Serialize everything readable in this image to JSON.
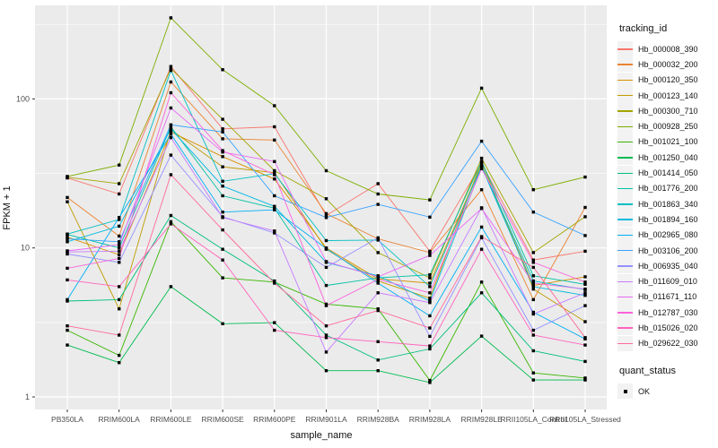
{
  "panel": {
    "background": "#EBEBEB",
    "grid_color": "#FFFFFF",
    "tick_color": "#333333",
    "tick_label_color": "#4D4D4D",
    "marker_color": "#000000"
  },
  "legend": {
    "tracking_title": "tracking_id",
    "quant_title": "quant_status",
    "quant_items": [
      {
        "label": "OK"
      }
    ]
  },
  "chart_data": {
    "type": "line",
    "title": "",
    "xlabel": "sample_name",
    "ylabel": "FPKM + 1",
    "y_scale": "log10",
    "y_ticks": [
      1,
      10,
      100
    ],
    "ylim": [
      1,
      400
    ],
    "grid": "on",
    "legend_position": "right",
    "marker": "black-square",
    "categories": [
      "PB350LA",
      "RRIM600LA",
      "RRIM600LE",
      "RRIM600SE",
      "RRIM600PE",
      "RRIM901LA",
      "RRIM928BA",
      "RRIM928LA",
      "RRIM928LE",
      "RRII105LA_Control",
      "RRII105LA_Stressed"
    ],
    "series": [
      {
        "name": "Hb_000008_390",
        "color": "#F8766D",
        "values": [
          29.5,
          23,
          165,
          63,
          65,
          16.5,
          27,
          9.5,
          37,
          8.3,
          9.5
        ]
      },
      {
        "name": "Hb_000032_200",
        "color": "#EA8331",
        "values": [
          21.8,
          12,
          130,
          54,
          53,
          17,
          11.5,
          9.3,
          24.6,
          4.5,
          18.7
        ]
      },
      {
        "name": "Hb_000120_350",
        "color": "#D89000",
        "values": [
          11.8,
          9,
          60,
          41,
          29,
          10,
          6.2,
          5.8,
          36,
          5.6,
          6.4
        ]
      },
      {
        "name": "Hb_000123_140",
        "color": "#C09B00",
        "values": [
          20.4,
          3.9,
          62,
          35,
          32,
          9.8,
          6.0,
          4.6,
          38,
          5.3,
          3.2
        ]
      },
      {
        "name": "Hb_000300_710",
        "color": "#A3A500",
        "values": [
          29.8,
          27,
          160,
          73,
          33,
          21.4,
          9.3,
          6.3,
          40,
          9.3,
          16.2
        ]
      },
      {
        "name": "Hb_000928_250",
        "color": "#7CAE00",
        "values": [
          30.2,
          36,
          350,
          157,
          90,
          33,
          23,
          21,
          118,
          24.6,
          29.9
        ]
      },
      {
        "name": "Hb_001021_100",
        "color": "#39B600",
        "values": [
          2.8,
          1.9,
          15,
          6.3,
          5.9,
          4.2,
          3.9,
          1.29,
          5.9,
          1.45,
          1.34
        ]
      },
      {
        "name": "Hb_001250_040",
        "color": "#00BB4E",
        "values": [
          2.23,
          1.7,
          5.5,
          3.1,
          3.15,
          1.5,
          1.5,
          1.25,
          2.56,
          1.3,
          1.3
        ]
      },
      {
        "name": "Hb_001414_050",
        "color": "#00BF7D",
        "values": [
          4.4,
          4.5,
          16.5,
          9.8,
          6.0,
          2.6,
          1.77,
          2.1,
          5.0,
          2.04,
          1.73
        ]
      },
      {
        "name": "Hb_001776_200",
        "color": "#00C1A3",
        "values": [
          12.3,
          10,
          65,
          22.4,
          18.5,
          5.6,
          6.3,
          6.6,
          38,
          6.5,
          5.7
        ]
      },
      {
        "name": "Hb_001863_340",
        "color": "#00BFC4",
        "values": [
          12.4,
          15.5,
          155,
          28,
          31.5,
          11.2,
          11.3,
          5.5,
          35.5,
          6.0,
          5.25
        ]
      },
      {
        "name": "Hb_001894_160",
        "color": "#00BAE0",
        "values": [
          11.0,
          14,
          63,
          26,
          19,
          8.0,
          6.5,
          4.4,
          35,
          5.5,
          4.8
        ]
      },
      {
        "name": "Hb_002965_080",
        "color": "#00B0F6",
        "values": [
          4.5,
          16,
          58,
          17.4,
          18,
          9.9,
          5.8,
          3.5,
          13.8,
          3.7,
          2.45
        ]
      },
      {
        "name": "Hb_003106_200",
        "color": "#35A2FF",
        "values": [
          11.5,
          11,
          67,
          60,
          22.4,
          16,
          19.6,
          16.1,
          52,
          17.4,
          12.1
        ]
      },
      {
        "name": "Hb_006935_040",
        "color": "#9590FF",
        "values": [
          9.1,
          8,
          42,
          16.2,
          12.6,
          7.4,
          11.7,
          2.55,
          11.7,
          2.8,
          4.1
        ]
      },
      {
        "name": "Hb_011609_010",
        "color": "#C77CFF",
        "values": [
          9.4,
          9.5,
          55,
          16,
          13,
          2.0,
          5.0,
          4.3,
          18.6,
          3.6,
          5.0
        ]
      },
      {
        "name": "Hb_011671_110",
        "color": "#E76BF3",
        "values": [
          9.55,
          10.5,
          87,
          44,
          38,
          8.1,
          6.4,
          8.9,
          18.4,
          5.8,
          5.3
        ]
      },
      {
        "name": "Hb_012787_030",
        "color": "#FA62DB",
        "values": [
          7.3,
          8.5,
          110,
          45,
          31,
          4.1,
          6.15,
          5.0,
          34,
          8.0,
          5.9
        ]
      },
      {
        "name": "Hb_015026_020",
        "color": "#FF62BC",
        "values": [
          6.1,
          5.5,
          14.5,
          8.3,
          2.8,
          2.5,
          2.35,
          2.2,
          9.8,
          2.6,
          2.23
        ]
      },
      {
        "name": "Hb_029622_030",
        "color": "#FF6A98",
        "values": [
          3.0,
          2.6,
          31,
          13.2,
          5.8,
          3.0,
          3.8,
          2.9,
          11.9,
          7.4,
          2.5
        ]
      }
    ]
  }
}
